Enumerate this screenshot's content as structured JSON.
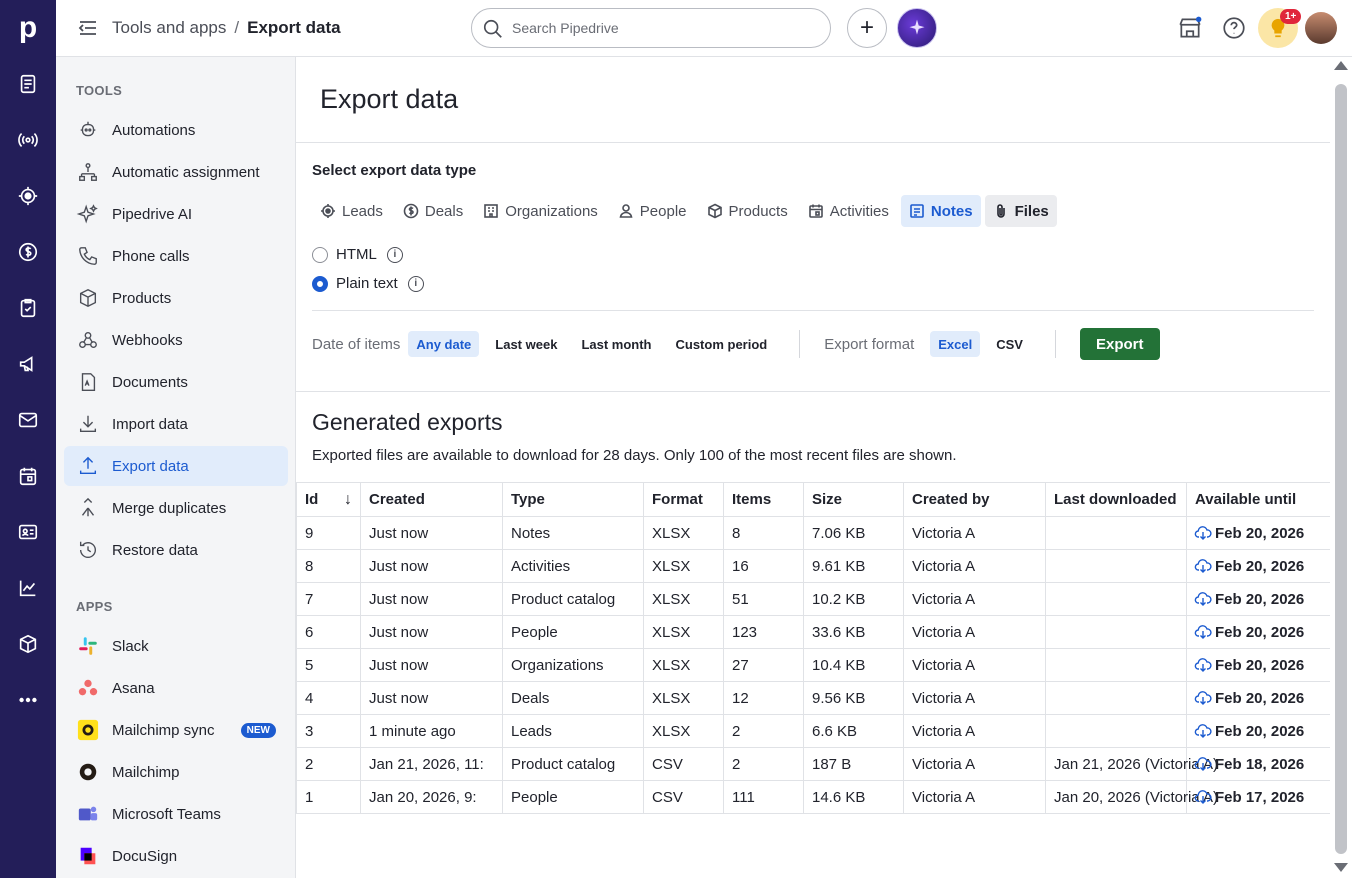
{
  "rail": {
    "logo": "p",
    "icons": [
      "leads-inbox-icon",
      "broadcast-icon",
      "target-icon",
      "dollar-icon",
      "checklist-icon",
      "megaphone-icon",
      "mail-icon",
      "calendar-icon",
      "contacts-card-icon",
      "chart-icon",
      "box-icon",
      "more-icon"
    ]
  },
  "header": {
    "breadcrumb_parent": "Tools and apps",
    "breadcrumb_sep": "/",
    "breadcrumb_current": "Export data",
    "search_placeholder": "Search Pipedrive",
    "plus": "+",
    "notification_badge": "1+"
  },
  "sidebar": {
    "tools_title": "TOOLS",
    "tools": [
      {
        "label": "Automations",
        "icon": "robot-icon"
      },
      {
        "label": "Automatic assignment",
        "icon": "assignment-icon"
      },
      {
        "label": "Pipedrive AI",
        "icon": "sparkle-icon"
      },
      {
        "label": "Phone calls",
        "icon": "phone-icon"
      },
      {
        "label": "Products",
        "icon": "box-icon"
      },
      {
        "label": "Webhooks",
        "icon": "webhook-icon"
      },
      {
        "label": "Documents",
        "icon": "document-icon"
      },
      {
        "label": "Import data",
        "icon": "download-icon"
      },
      {
        "label": "Export data",
        "icon": "upload-icon"
      },
      {
        "label": "Merge duplicates",
        "icon": "merge-icon"
      },
      {
        "label": "Restore data",
        "icon": "restore-icon"
      }
    ],
    "apps_title": "APPS",
    "apps": [
      {
        "label": "Slack",
        "icon": "slack-icon"
      },
      {
        "label": "Asana",
        "icon": "asana-icon"
      },
      {
        "label": "Mailchimp sync",
        "icon": "mailchimp-icon",
        "badge": "NEW"
      },
      {
        "label": "Mailchimp",
        "icon": "mailchimp-icon"
      },
      {
        "label": "Microsoft Teams",
        "icon": "teams-icon"
      },
      {
        "label": "DocuSign",
        "icon": "docusign-icon"
      }
    ]
  },
  "main": {
    "title": "Export data",
    "select_label": "Select export data type",
    "tabs": [
      "Leads",
      "Deals",
      "Organizations",
      "People",
      "Products",
      "Activities",
      "Notes",
      "Files"
    ],
    "selected_tab": "Notes",
    "format_options": [
      {
        "label": "HTML",
        "checked": false
      },
      {
        "label": "Plain text",
        "checked": true
      }
    ],
    "date_label": "Date of items",
    "date_options": [
      "Any date",
      "Last week",
      "Last month",
      "Custom period"
    ],
    "selected_date": "Any date",
    "export_format_label": "Export format",
    "export_formats": [
      "Excel",
      "CSV"
    ],
    "selected_format": "Excel",
    "export_button": "Export",
    "generated_title": "Generated exports",
    "generated_desc": "Exported files are available to download for 28 days. Only 100 of the most recent files are shown.",
    "columns": [
      "Id",
      "Created",
      "Type",
      "Format",
      "Items",
      "Size",
      "Created by",
      "Last downloaded",
      "Available until"
    ],
    "rows": [
      [
        "9",
        "Just now",
        "Notes",
        "XLSX",
        "8",
        "7.06 KB",
        "Victoria A",
        "",
        "Feb 20, 2026"
      ],
      [
        "8",
        "Just now",
        "Activities",
        "XLSX",
        "16",
        "9.61 KB",
        "Victoria A",
        "",
        "Feb 20, 2026"
      ],
      [
        "7",
        "Just now",
        "Product catalog",
        "XLSX",
        "51",
        "10.2 KB",
        "Victoria A",
        "",
        "Feb 20, 2026"
      ],
      [
        "6",
        "Just now",
        "People",
        "XLSX",
        "123",
        "33.6 KB",
        "Victoria A",
        "",
        "Feb 20, 2026"
      ],
      [
        "5",
        "Just now",
        "Organizations",
        "XLSX",
        "27",
        "10.4 KB",
        "Victoria A",
        "",
        "Feb 20, 2026"
      ],
      [
        "4",
        "Just now",
        "Deals",
        "XLSX",
        "12",
        "9.56 KB",
        "Victoria A",
        "",
        "Feb 20, 2026"
      ],
      [
        "3",
        "1 minute ago",
        "Leads",
        "XLSX",
        "2",
        "6.6 KB",
        "Victoria A",
        "",
        "Feb 20, 2026"
      ],
      [
        "2",
        "Jan 21, 2026, 11:",
        "Product catalog",
        "CSV",
        "2",
        "187 B",
        "Victoria A",
        "Jan 21, 2026 (Victoria A)",
        "Feb 18, 2026"
      ],
      [
        "1",
        "Jan 20, 2026, 9:",
        "People",
        "CSV",
        "111",
        "14.6 KB",
        "Victoria A",
        "Jan 20, 2026 (Victoria A)",
        "Feb 17, 2026"
      ]
    ]
  },
  "colors": {
    "rail": "#231e59",
    "accent": "#1c5bd0",
    "export_button": "#237237"
  }
}
